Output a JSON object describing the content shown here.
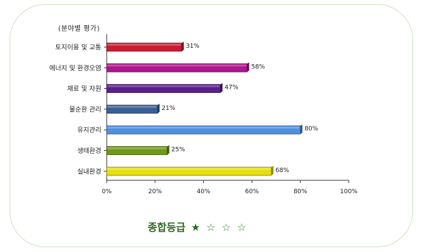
{
  "chart_data": {
    "type": "bar",
    "orientation": "horizontal",
    "subtitle": "(분야별 평가)",
    "categories": [
      "토지이용 및 교통",
      "에너지 및 환경오염",
      "재료 및 자원",
      "물순환 관리",
      "유지관리",
      "생태환경",
      "실내환경"
    ],
    "values": [
      31,
      58,
      47,
      21,
      80,
      25,
      68
    ],
    "value_suffix": "%",
    "colors": [
      "#cc1a33",
      "#b0168e",
      "#5b1f8e",
      "#3a5f95",
      "#4f8fe0",
      "#6e9a18",
      "#e6df10"
    ],
    "xlim": [
      0,
      100
    ],
    "xticks": [
      "0%",
      "20%",
      "40%",
      "60%",
      "80%",
      "100%"
    ],
    "grid": false
  },
  "grade": {
    "label": "종합등급",
    "filled_star": "★",
    "empty_star": "☆",
    "rating": 1,
    "max": 4
  }
}
